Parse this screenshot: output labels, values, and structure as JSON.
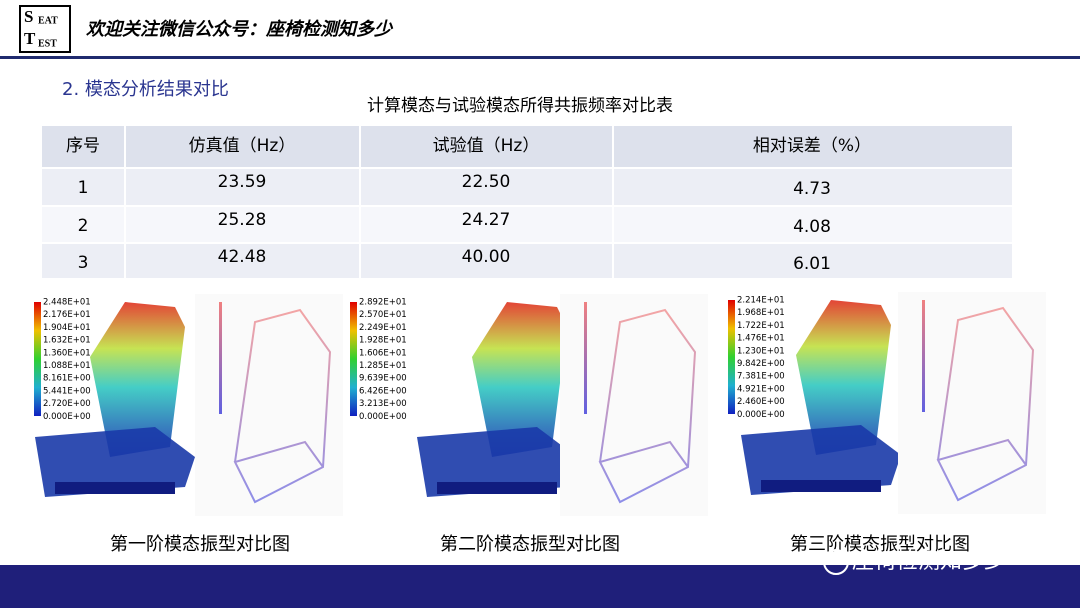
{
  "header": {
    "logo": [
      "S",
      "EAT",
      "T",
      "EST"
    ],
    "text": "欢迎关注微信公众号：座椅检测知多少"
  },
  "section_title": "2. 模态分析结果对比",
  "table": {
    "title": "计算模态与试验模态所得共振频率对比表",
    "columns": [
      "序号",
      "仿真值（Hz）",
      "试验值（Hz）",
      "相对误差（%）"
    ],
    "rows": [
      [
        "1",
        "23.59",
        "22.50",
        "4.73"
      ],
      [
        "2",
        "25.28",
        "24.27",
        "4.08"
      ],
      [
        "3",
        "42.48",
        "40.00",
        "6.01"
      ]
    ]
  },
  "figures": [
    {
      "legend": [
        "2.448E+01",
        "2.176E+01",
        "1.904E+01",
        "1.632E+01",
        "1.360E+01",
        "1.088E+01",
        "8.161E+00",
        "5.441E+00",
        "2.720E+00",
        "0.000E+00"
      ],
      "caption": "第一阶模态振型对比图"
    },
    {
      "legend": [
        "2.892E+01",
        "2.570E+01",
        "2.249E+01",
        "1.928E+01",
        "1.606E+01",
        "1.285E+01",
        "9.639E+00",
        "6.426E+00",
        "3.213E+00",
        "0.000E+00"
      ],
      "caption": "第二阶模态振型对比图"
    },
    {
      "legend": [
        "2.214E+01",
        "1.968E+01",
        "1.722E+01",
        "1.476E+01",
        "1.230E+01",
        "9.842E+00",
        "7.381E+00",
        "4.921E+00",
        "2.460E+00",
        "0.000E+00"
      ],
      "caption": "第三阶模态振型对比图"
    }
  ],
  "watermark": "座椅检测知多少"
}
